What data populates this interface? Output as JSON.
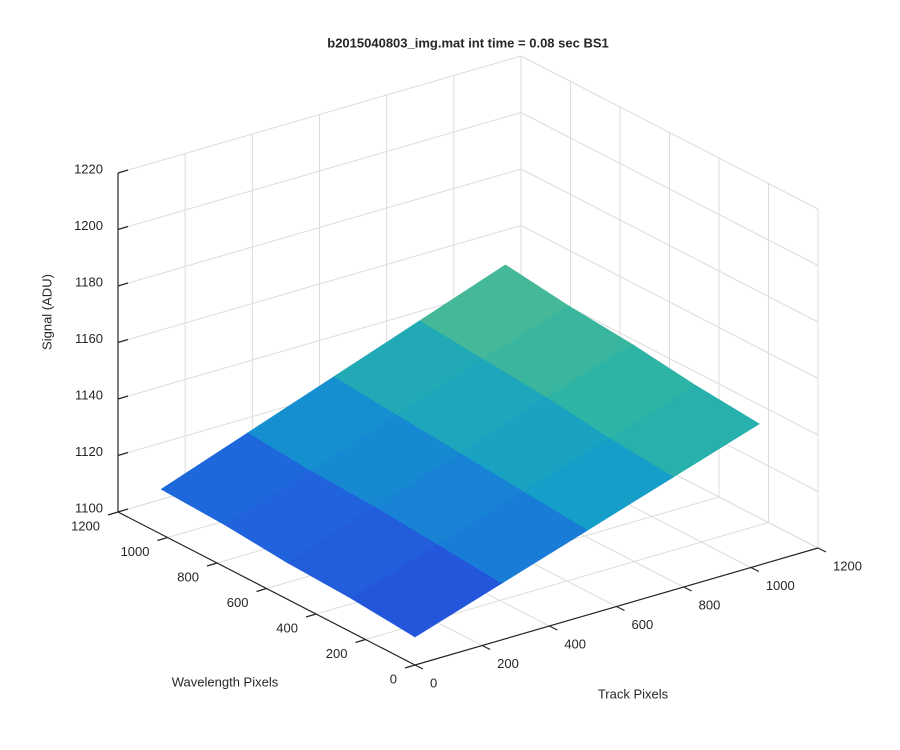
{
  "chart_data": {
    "type": "surface",
    "title": "b2015040803_img.mat int time = 0.08 sec   BS1",
    "xlabel": "Track Pixels",
    "ylabel": "Wavelength Pixels",
    "zlabel": "Signal (ADU)",
    "x": [
      0,
      256,
      512,
      768,
      1024
    ],
    "y": [
      0,
      256,
      512,
      768,
      1024
    ],
    "z": [
      [
        1110,
        1120,
        1130,
        1140,
        1150
      ],
      [
        1112,
        1122,
        1132,
        1142,
        1152
      ],
      [
        1113,
        1124,
        1134,
        1145,
        1155
      ],
      [
        1115,
        1125,
        1136,
        1147,
        1157
      ],
      [
        1116,
        1127,
        1138,
        1149,
        1160
      ]
    ],
    "xlim": [
      0,
      1200
    ],
    "ylim": [
      0,
      1200
    ],
    "zlim": [
      1100,
      1220
    ],
    "xticks": [
      0,
      200,
      400,
      600,
      800,
      1000,
      1200
    ],
    "yticks": [
      0,
      200,
      400,
      600,
      800,
      1000,
      1200
    ],
    "zticks": [
      1100,
      1120,
      1140,
      1160,
      1180,
      1200,
      1220
    ],
    "grid": true,
    "colormap": [
      "#2b3fdc",
      "#1c6fdc",
      "#139ccb",
      "#2ab3a8",
      "#62bd86"
    ]
  }
}
